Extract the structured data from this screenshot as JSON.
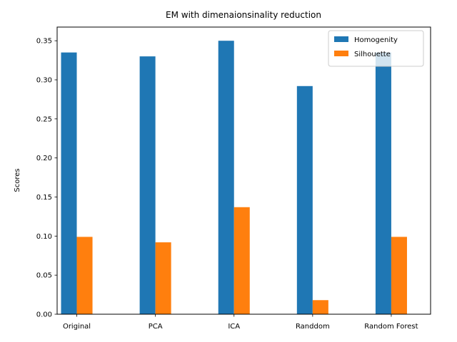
{
  "chart_data": {
    "type": "bar",
    "title": "EM with dimenaionsinality reduction",
    "xlabel": "",
    "ylabel": "Scores",
    "categories": [
      "Original",
      "PCA",
      "ICA",
      "Randdom",
      "Random Forest"
    ],
    "series": [
      {
        "name": "Homogenity",
        "color": "#1f77b4",
        "values": [
          0.335,
          0.33,
          0.35,
          0.292,
          0.335
        ]
      },
      {
        "name": "Silhouette",
        "color": "#ff7f0e",
        "values": [
          0.099,
          0.092,
          0.137,
          0.018,
          0.099
        ]
      }
    ],
    "ylim": [
      0,
      0.3675
    ],
    "yticks": [
      "0.00",
      "0.05",
      "0.10",
      "0.15",
      "0.20",
      "0.25",
      "0.30",
      "0.35"
    ],
    "legend_position": "top-right",
    "grid": false
  }
}
